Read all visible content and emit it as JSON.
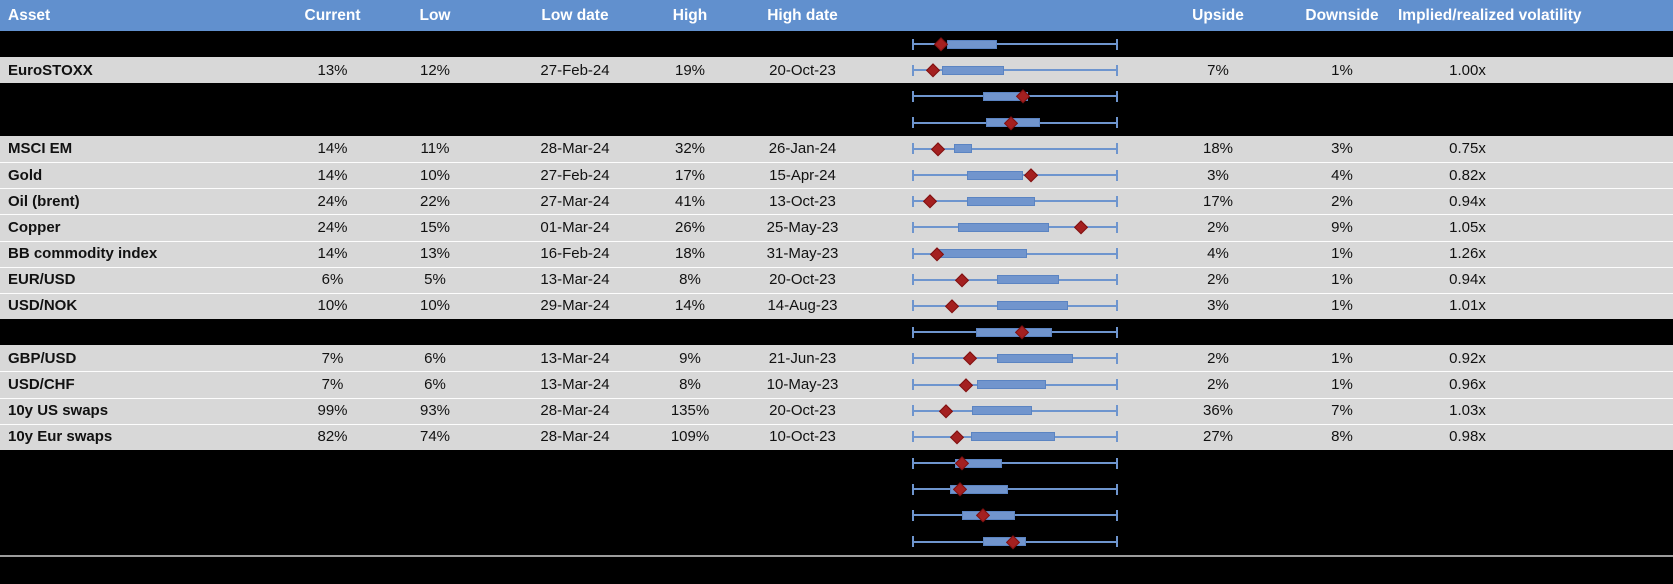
{
  "header": {
    "asset": "Asset",
    "current": "Current",
    "low": "Low",
    "low_date": "Low date",
    "high": "High",
    "high_date": "High date",
    "upside": "Upside",
    "downside": "Downside",
    "vol": "Implied/realized volatility"
  },
  "colors": {
    "header_bg": "#6190CE",
    "header_text": "#FFFFFF",
    "row_bg": "#D8D8D8",
    "hidden_row_bg": "#000000",
    "box_fill": "#7195CD",
    "box_border": "#5B84C2",
    "whisker": "#6E95CE",
    "diamond": "#A42020",
    "divider": "#9C9C9C"
  },
  "chart_data": {
    "type": "table",
    "title": "",
    "note_type": "each row embeds a horizontal box-whisker plot (fractions of full whisker span 0-1) with a diamond marker for current level",
    "columns": [
      "Asset",
      "Current",
      "Low",
      "Low date",
      "High",
      "High date",
      "Upside",
      "Downside",
      "Implied/realized volatility"
    ]
  },
  "rows": [
    {
      "type": "hidden",
      "asset": "",
      "current": "",
      "low": "",
      "low_date": "",
      "high": "",
      "high_date": "",
      "upside": "",
      "downside": "",
      "vol": "",
      "plot": {
        "box_from": 0.165,
        "box_to": 0.41,
        "diamond": 0.137
      }
    },
    {
      "type": "data",
      "asset": "EuroSTOXX",
      "current": "13%",
      "low": "12%",
      "low_date": "27-Feb-24",
      "high": "19%",
      "high_date": "20-Oct-23",
      "upside": "7%",
      "downside": "1%",
      "vol": "1.00x",
      "plot": {
        "box_from": 0.141,
        "box_to": 0.446,
        "diamond": 0.097
      }
    },
    {
      "type": "hidden",
      "asset": "",
      "current": "",
      "low": "",
      "low_date": "",
      "high": "",
      "high_date": "",
      "upside": "",
      "downside": "",
      "vol": "",
      "plot": {
        "box_from": 0.345,
        "box_to": 0.565,
        "diamond": 0.538
      }
    },
    {
      "type": "hidden",
      "asset": "",
      "current": "",
      "low": "",
      "low_date": "",
      "high": "",
      "high_date": "",
      "upside": "",
      "downside": "",
      "vol": "",
      "plot": {
        "box_from": 0.358,
        "box_to": 0.623,
        "diamond": 0.48
      }
    },
    {
      "type": "data",
      "asset": "MSCI EM",
      "current": "14%",
      "low": "11%",
      "low_date": "28-Mar-24",
      "high": "32%",
      "high_date": "26-Jan-24",
      "upside": "18%",
      "downside": "3%",
      "vol": "0.75x",
      "plot": {
        "box_from": 0.2,
        "box_to": 0.29,
        "diamond": 0.121
      }
    },
    {
      "type": "data",
      "asset": "Gold",
      "current": "14%",
      "low": "10%",
      "low_date": "27-Feb-24",
      "high": "17%",
      "high_date": "15-Apr-24",
      "upside": "3%",
      "downside": "4%",
      "vol": "0.82x",
      "plot": {
        "box_from": 0.263,
        "box_to": 0.538,
        "diamond": 0.577
      }
    },
    {
      "type": "data",
      "asset": "Oil (brent)",
      "current": "24%",
      "low": "22%",
      "low_date": "27-Mar-24",
      "high": "41%",
      "high_date": "13-Oct-23",
      "upside": "17%",
      "downside": "2%",
      "vol": "0.94x",
      "plot": {
        "box_from": 0.265,
        "box_to": 0.6,
        "diamond": 0.085
      }
    },
    {
      "type": "data",
      "asset": "Copper",
      "current": "24%",
      "low": "15%",
      "low_date": "01-Mar-24",
      "high": "26%",
      "high_date": "25-May-23",
      "upside": "2%",
      "downside": "9%",
      "vol": "1.05x",
      "plot": {
        "box_from": 0.219,
        "box_to": 0.667,
        "diamond": 0.822
      }
    },
    {
      "type": "data",
      "asset": "BB commodity index",
      "current": "14%",
      "low": "13%",
      "low_date": "16-Feb-24",
      "high": "18%",
      "high_date": "31-May-23",
      "upside": "4%",
      "downside": "1%",
      "vol": "1.26x",
      "plot": {
        "box_from": 0.125,
        "box_to": 0.557,
        "diamond": 0.119
      }
    },
    {
      "type": "data",
      "asset": "EUR/USD",
      "current": "6%",
      "low": "5%",
      "low_date": "13-Mar-24",
      "high": "8%",
      "high_date": "20-Oct-23",
      "upside": "2%",
      "downside": "1%",
      "vol": "0.94x",
      "plot": {
        "box_from": 0.413,
        "box_to": 0.716,
        "diamond": 0.242
      }
    },
    {
      "type": "data",
      "asset": "USD/NOK",
      "current": "10%",
      "low": "10%",
      "low_date": "29-Mar-24",
      "high": "14%",
      "high_date": "14-Aug-23",
      "upside": "3%",
      "downside": "1%",
      "vol": "1.01x",
      "plot": {
        "box_from": 0.413,
        "box_to": 0.761,
        "diamond": 0.19
      }
    },
    {
      "type": "hidden",
      "asset": "",
      "current": "",
      "low": "",
      "low_date": "",
      "high": "",
      "high_date": "",
      "upside": "",
      "downside": "",
      "vol": "",
      "plot": {
        "box_from": 0.309,
        "box_to": 0.68,
        "diamond": 0.533
      }
    },
    {
      "type": "data",
      "asset": "GBP/USD",
      "current": "7%",
      "low": "6%",
      "low_date": "13-Mar-24",
      "high": "9%",
      "high_date": "21-Jun-23",
      "upside": "2%",
      "downside": "1%",
      "vol": "0.92x",
      "plot": {
        "box_from": 0.413,
        "box_to": 0.786,
        "diamond": 0.279
      }
    },
    {
      "type": "data",
      "asset": "USD/CHF",
      "current": "7%",
      "low": "6%",
      "low_date": "13-Mar-24",
      "high": "8%",
      "high_date": "10-May-23",
      "upside": "2%",
      "downside": "1%",
      "vol": "0.96x",
      "plot": {
        "box_from": 0.312,
        "box_to": 0.65,
        "diamond": 0.26
      }
    },
    {
      "type": "data",
      "asset": "10y US swaps",
      "current": "99%",
      "low": "93%",
      "low_date": "28-Mar-24",
      "high": "135%",
      "high_date": "20-Oct-23",
      "upside": "36%",
      "downside": "7%",
      "vol": "1.03x",
      "plot": {
        "box_from": 0.288,
        "box_to": 0.585,
        "diamond": 0.162
      }
    },
    {
      "type": "data",
      "asset": "10y Eur swaps",
      "current": "82%",
      "low": "74%",
      "low_date": "28-Mar-24",
      "high": "109%",
      "high_date": "10-Oct-23",
      "upside": "27%",
      "downside": "8%",
      "vol": "0.98x",
      "plot": {
        "box_from": 0.283,
        "box_to": 0.696,
        "diamond": 0.217
      }
    },
    {
      "type": "hidden",
      "asset": "",
      "current": "",
      "low": "",
      "low_date": "",
      "high": "",
      "high_date": "",
      "upside": "",
      "downside": "",
      "vol": "",
      "plot": {
        "box_from": 0.206,
        "box_to": 0.435,
        "diamond": 0.242
      }
    },
    {
      "type": "hidden",
      "asset": "",
      "current": "",
      "low": "",
      "low_date": "",
      "high": "",
      "high_date": "",
      "upside": "",
      "downside": "",
      "vol": "",
      "plot": {
        "box_from": 0.181,
        "box_to": 0.467,
        "diamond": 0.23
      }
    },
    {
      "type": "hidden",
      "asset": "",
      "current": "",
      "low": "",
      "low_date": "",
      "high": "",
      "high_date": "",
      "upside": "",
      "downside": "",
      "vol": "",
      "plot": {
        "box_from": 0.239,
        "box_to": 0.5,
        "diamond": 0.345
      }
    },
    {
      "type": "hidden",
      "asset": "",
      "current": "",
      "low": "",
      "low_date": "",
      "high": "",
      "high_date": "",
      "upside": "",
      "downside": "",
      "vol": "",
      "plot": {
        "box_from": 0.345,
        "box_to": 0.554,
        "diamond": 0.489
      }
    }
  ]
}
